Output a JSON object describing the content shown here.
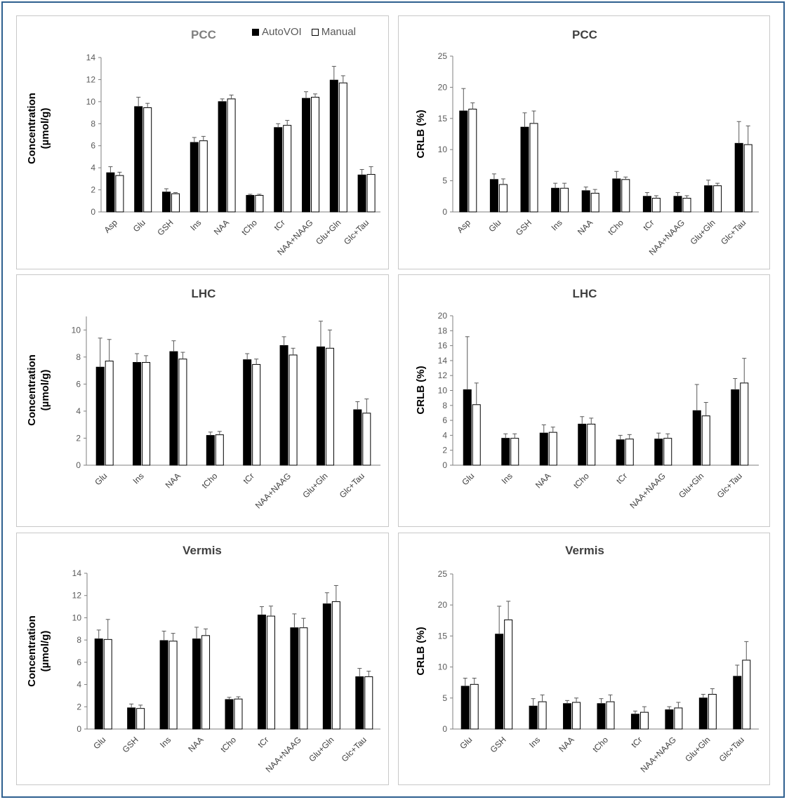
{
  "legend": {
    "auto": "AutoVOI",
    "manual": "Manual"
  },
  "colors": {
    "auto": "#000000",
    "manual": "#ffffff",
    "border": "#2e5f8f"
  },
  "chart_data": [
    {
      "type": "bar",
      "title": "PCC",
      "ylabel": "Concentration\n(µmol/g)",
      "ylim": [
        0,
        14
      ],
      "yticks": [
        0,
        2,
        4,
        6,
        8,
        10,
        12,
        14
      ],
      "categories": [
        "Asp",
        "Glu",
        "GSH",
        "Ins",
        "NAA",
        "tCho",
        "tCr",
        "NAA+NAAG",
        "Glu+Gln",
        "Glc+Tau"
      ],
      "series": [
        {
          "name": "AutoVOI",
          "values": [
            3.55,
            9.55,
            1.8,
            6.3,
            10.0,
            1.5,
            7.65,
            10.3,
            11.95,
            3.35
          ],
          "errors": [
            0.55,
            0.85,
            0.3,
            0.45,
            0.25,
            0.1,
            0.35,
            0.6,
            1.25,
            0.5
          ]
        },
        {
          "name": "Manual",
          "values": [
            3.3,
            9.45,
            1.65,
            6.45,
            10.25,
            1.5,
            7.85,
            10.4,
            11.7,
            3.4
          ],
          "errors": [
            0.3,
            0.4,
            0.1,
            0.4,
            0.35,
            0.1,
            0.45,
            0.3,
            0.65,
            0.7
          ]
        }
      ]
    },
    {
      "type": "bar",
      "title": "PCC",
      "ylabel": "CRLB (%)",
      "ylim": [
        0,
        25
      ],
      "yticks": [
        0,
        5,
        10,
        15,
        20,
        25
      ],
      "categories": [
        "Asp",
        "Glu",
        "GSH",
        "Ins",
        "NAA",
        "tCho",
        "tCr",
        "NAA+NAAG",
        "Glu+Gln",
        "Glc+Tau"
      ],
      "series": [
        {
          "name": "AutoVOI",
          "values": [
            16.2,
            5.2,
            13.6,
            3.8,
            3.4,
            5.3,
            2.5,
            2.5,
            4.2,
            11.0
          ],
          "errors": [
            3.6,
            0.9,
            2.3,
            0.8,
            0.6,
            1.2,
            0.6,
            0.6,
            0.9,
            3.5
          ]
        },
        {
          "name": "Manual",
          "values": [
            16.5,
            4.4,
            14.2,
            3.8,
            3.0,
            5.2,
            2.2,
            2.2,
            4.2,
            10.8
          ],
          "errors": [
            1.0,
            0.9,
            2.0,
            0.8,
            0.6,
            0.4,
            0.4,
            0.4,
            0.4,
            3.0
          ]
        }
      ]
    },
    {
      "type": "bar",
      "title": "LHC",
      "ylabel": "Concentration\n(µmol/g)",
      "ylim": [
        0,
        11
      ],
      "yticks": [
        0,
        2,
        4,
        6,
        8,
        10
      ],
      "categories": [
        "Glu",
        "Ins",
        "NAA",
        "tCho",
        "tCr",
        "NAA+NAAG",
        "Glu+Gln",
        "Glc+Tau"
      ],
      "series": [
        {
          "name": "AutoVOI",
          "values": [
            7.25,
            7.6,
            8.4,
            2.2,
            7.8,
            8.85,
            8.75,
            4.1
          ],
          "errors": [
            2.15,
            0.65,
            0.8,
            0.25,
            0.45,
            0.65,
            1.9,
            0.6
          ]
        },
        {
          "name": "Manual",
          "values": [
            7.7,
            7.6,
            7.85,
            2.25,
            7.45,
            8.15,
            8.65,
            3.85
          ],
          "errors": [
            1.6,
            0.5,
            0.5,
            0.25,
            0.4,
            0.5,
            1.35,
            1.05
          ]
        }
      ]
    },
    {
      "type": "bar",
      "title": "LHC",
      "ylabel": "CRLB (%)",
      "ylim": [
        0,
        20
      ],
      "yticks": [
        0,
        2,
        4,
        6,
        8,
        10,
        12,
        14,
        16,
        18,
        20
      ],
      "categories": [
        "Glu",
        "Ins",
        "NAA",
        "tCho",
        "tCr",
        "NAA+NAAG",
        "Glu+Gln",
        "Glc+Tau"
      ],
      "series": [
        {
          "name": "AutoVOI",
          "values": [
            10.1,
            3.6,
            4.3,
            5.5,
            3.4,
            3.5,
            7.3,
            10.1
          ],
          "errors": [
            7.1,
            0.6,
            1.1,
            1.0,
            0.6,
            0.8,
            3.5,
            1.5
          ]
        },
        {
          "name": "Manual",
          "values": [
            8.1,
            3.6,
            4.4,
            5.5,
            3.5,
            3.6,
            6.6,
            11.0
          ],
          "errors": [
            2.9,
            0.6,
            0.7,
            0.8,
            0.6,
            0.6,
            1.8,
            3.3
          ]
        }
      ]
    },
    {
      "type": "bar",
      "title": "Vermis",
      "ylabel": "Concentration\n(µmol/g)",
      "ylim": [
        0,
        14
      ],
      "yticks": [
        0,
        2,
        4,
        6,
        8,
        10,
        12,
        14
      ],
      "categories": [
        "Glu",
        "GSH",
        "Ins",
        "NAA",
        "tCho",
        "tCr",
        "NAA+NAAG",
        "Glu+Gln",
        "Glc+Tau"
      ],
      "series": [
        {
          "name": "AutoVOI",
          "values": [
            8.1,
            1.9,
            7.95,
            8.1,
            2.65,
            10.25,
            9.1,
            11.25,
            4.7
          ],
          "errors": [
            0.8,
            0.35,
            0.85,
            1.05,
            0.2,
            0.75,
            1.25,
            1.0,
            0.75
          ]
        },
        {
          "name": "Manual",
          "values": [
            8.05,
            1.85,
            7.9,
            8.4,
            2.7,
            10.15,
            9.1,
            11.45,
            4.7
          ],
          "errors": [
            1.8,
            0.3,
            0.7,
            0.6,
            0.2,
            0.9,
            0.85,
            1.45,
            0.5
          ]
        }
      ]
    },
    {
      "type": "bar",
      "title": "Vermis",
      "ylabel": "CRLB (%)",
      "ylim": [
        0,
        25
      ],
      "yticks": [
        0,
        5,
        10,
        15,
        20,
        25
      ],
      "categories": [
        "Glu",
        "GSH",
        "Ins",
        "NAA",
        "tCho",
        "tCr",
        "NAA+NAAG",
        "Glu+Gln",
        "Glc+Tau"
      ],
      "series": [
        {
          "name": "AutoVOI",
          "values": [
            6.9,
            15.3,
            3.7,
            4.1,
            4.1,
            2.4,
            3.1,
            5.0,
            8.5
          ],
          "errors": [
            1.3,
            4.5,
            1.2,
            0.5,
            0.8,
            0.5,
            0.5,
            0.6,
            1.8
          ]
        },
        {
          "name": "Manual",
          "values": [
            7.2,
            17.6,
            4.4,
            4.3,
            4.4,
            2.7,
            3.4,
            5.6,
            11.1
          ],
          "errors": [
            1.0,
            3.0,
            1.1,
            0.7,
            1.1,
            0.9,
            0.9,
            0.9,
            3.0
          ]
        }
      ]
    }
  ]
}
